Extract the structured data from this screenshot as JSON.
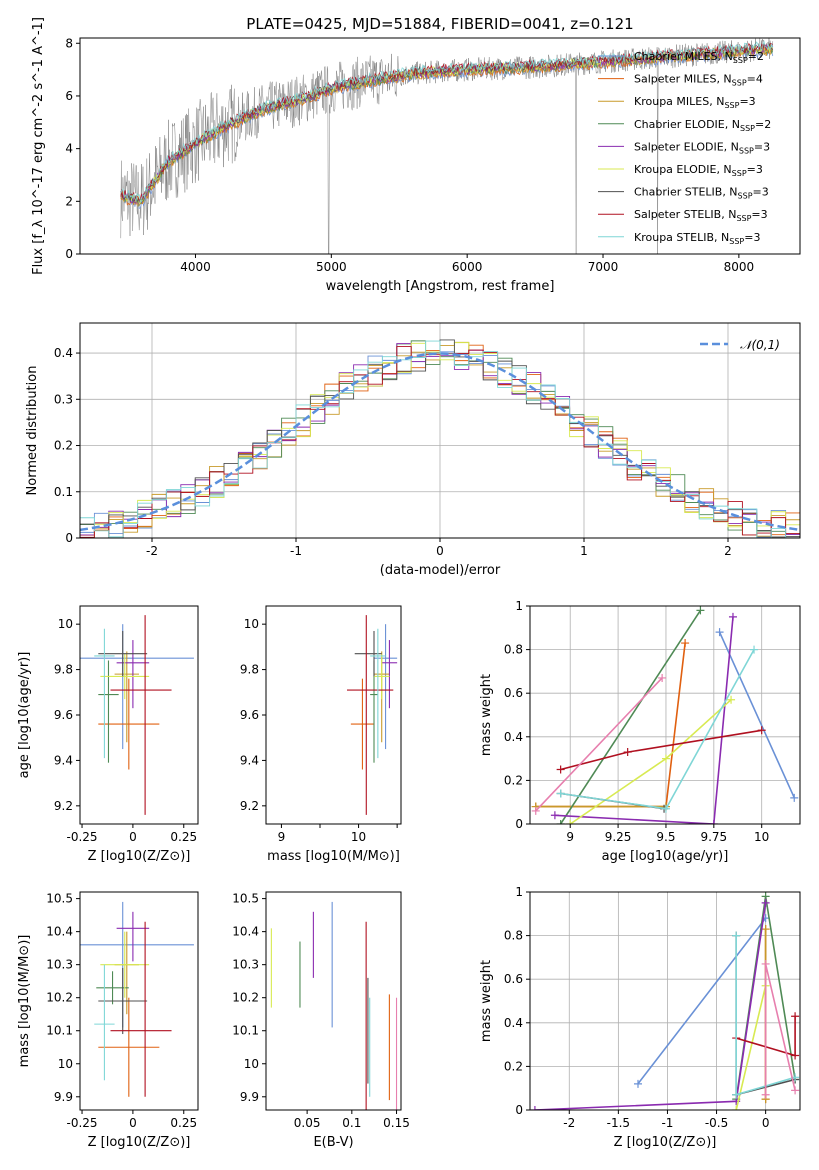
{
  "title": "PLATE=0425, MJD=51884, FIBERID=0041, z=0.121",
  "colors": {
    "Chabrier MILES": "#6a91d6",
    "Salpeter MILES": "#e06010",
    "Kroupa MILES": "#c89a2a",
    "Chabrier ELODIE": "#4f8a55",
    "Salpeter ELODIE": "#8a2bb0",
    "Kroupa ELODIE": "#d8ea52",
    "Chabrier STELIB": "#505050",
    "Salpeter STELIB": "#b01020",
    "Kroupa STELIB": "#7fd6d6",
    "data": "#808080",
    "normal": "#5a8fdc"
  },
  "chart_data": [
    {
      "type": "line",
      "id": "spectrum",
      "xlabel": "wavelength [Angstrom, rest frame]",
      "ylabel": "Flux [f_λ 10^-17 erg cm^-2 s^-1 A^-1]",
      "xlim": [
        3150,
        8450
      ],
      "ylim": [
        0,
        8.2
      ],
      "xticks": [
        4000,
        5000,
        6000,
        7000,
        8000
      ],
      "yticks": [
        0,
        2,
        4,
        6,
        8
      ],
      "legend": {
        "placement": "top-right",
        "entries": [
          {
            "name": "Chabrier MILES",
            "nssp": "2"
          },
          {
            "name": "Salpeter MILES",
            "nssp": "4"
          },
          {
            "name": "Kroupa MILES",
            "nssp": "3"
          },
          {
            "name": "Chabrier ELODIE",
            "nssp": "2"
          },
          {
            "name": "Salpeter ELODIE",
            "nssp": "3"
          },
          {
            "name": "Kroupa ELODIE",
            "nssp": "3"
          },
          {
            "name": "Chabrier STELIB",
            "nssp": "3"
          },
          {
            "name": "Salpeter STELIB",
            "nssp": "3"
          },
          {
            "name": "Kroupa STELIB",
            "nssp": "3"
          }
        ]
      },
      "continuum": {
        "wavelength": [
          3450,
          3600,
          3800,
          4000,
          4200,
          4500,
          4800,
          5000,
          5300,
          5600,
          6000,
          6500,
          7000,
          7500,
          8000,
          8250
        ],
        "flux": [
          2.2,
          2.0,
          3.5,
          4.2,
          4.8,
          5.5,
          5.9,
          6.3,
          6.6,
          6.85,
          7.0,
          7.1,
          7.3,
          7.5,
          7.7,
          7.8
        ]
      }
    },
    {
      "type": "histogram",
      "id": "residuals",
      "xlabel": "(data-model)/error",
      "ylabel": "Normed distribution",
      "xlim": [
        -2.5,
        2.5
      ],
      "ylim": [
        0,
        0.465
      ],
      "xticks": [
        -2,
        -1,
        0,
        1,
        2
      ],
      "yticks": [
        0.0,
        0.1,
        0.2,
        0.3,
        0.4
      ],
      "grid": true,
      "legend": {
        "placement": "top-right",
        "label": "𝒩(0,1)"
      }
    },
    {
      "type": "scatter",
      "id": "age-vs-Z",
      "xlabel": "Z [log10(Z/Z⊙)]",
      "ylabel": "age [log10(age/yr)]",
      "xlim": [
        -0.26,
        0.32
      ],
      "ylim": [
        9.12,
        10.08
      ],
      "xticks": [
        -0.25,
        0.0,
        0.25
      ],
      "yticks": [
        9.2,
        9.4,
        9.6,
        9.8,
        10.0
      ],
      "points": [
        {
          "model": "Chabrier MILES",
          "x": -0.05,
          "xerr": [
            0.35,
            0.35
          ],
          "y": 9.85,
          "yerr": [
            0.4,
            0.15
          ]
        },
        {
          "model": "Salpeter MILES",
          "x": -0.02,
          "xerr": [
            0.15,
            0.15
          ],
          "y": 9.56,
          "yerr": [
            0.2,
            0.2
          ]
        },
        {
          "model": "Kroupa MILES",
          "x": -0.03,
          "xerr": [
            0.06,
            0.06
          ],
          "y": 9.78,
          "yerr": [
            0.3,
            0.1
          ]
        },
        {
          "model": "Chabrier ELODIE",
          "x": -0.12,
          "xerr": [
            0.05,
            0.05
          ],
          "y": 9.69,
          "yerr": [
            0.3,
            0.15
          ]
        },
        {
          "model": "Salpeter ELODIE",
          "x": 0.0,
          "xerr": [
            0.08,
            0.08
          ],
          "y": 9.83,
          "yerr": [
            0.2,
            0.1
          ]
        },
        {
          "model": "Kroupa ELODIE",
          "x": -0.04,
          "xerr": [
            0.12,
            0.12
          ],
          "y": 9.77,
          "yerr": [
            0.1,
            0.1
          ]
        },
        {
          "model": "Chabrier STELIB",
          "x": -0.05,
          "xerr": [
            0.12,
            0.12
          ],
          "y": 9.87,
          "yerr": [
            0.1,
            0.1
          ]
        },
        {
          "model": "Salpeter STELIB",
          "x": 0.06,
          "xerr": [
            0.17,
            0.13
          ],
          "y": 9.71,
          "yerr": [
            0.55,
            0.33
          ]
        },
        {
          "model": "Kroupa STELIB",
          "x": -0.14,
          "xerr": [
            0.05,
            0.05
          ],
          "y": 9.86,
          "yerr": [
            0.45,
            0.12
          ]
        }
      ]
    },
    {
      "type": "scatter",
      "id": "age-vs-mass",
      "xlabel": "mass [log10(M/M⊙)]",
      "ylabel": "",
      "xlim": [
        8.8,
        10.55
      ],
      "ylim": [
        9.12,
        10.08
      ],
      "xticks": [
        9.0,
        9.5,
        10.0,
        10.5
      ],
      "xtick_labels": [
        "9",
        "",
        "10",
        ""
      ],
      "yticks": [
        9.2,
        9.4,
        9.6,
        9.8,
        10.0
      ],
      "points": [
        {
          "model": "Chabrier MILES",
          "x": 10.35,
          "xerr": [
            0.15,
            0.15
          ],
          "y": 9.85,
          "yerr": [
            0.4,
            0.15
          ]
        },
        {
          "model": "Salpeter MILES",
          "x": 10.05,
          "xerr": [
            0.15,
            0.15
          ],
          "y": 9.56,
          "yerr": [
            0.2,
            0.2
          ]
        },
        {
          "model": "Kroupa MILES",
          "x": 10.3,
          "xerr": [
            0.1,
            0.1
          ],
          "y": 9.78,
          "yerr": [
            0.3,
            0.1
          ]
        },
        {
          "model": "Chabrier ELODIE",
          "x": 10.2,
          "xerr": [
            0.05,
            0.05
          ],
          "y": 9.69,
          "yerr": [
            0.3,
            0.15
          ]
        },
        {
          "model": "Salpeter ELODIE",
          "x": 10.4,
          "xerr": [
            0.1,
            0.1
          ],
          "y": 9.83,
          "yerr": [
            0.2,
            0.1
          ]
        },
        {
          "model": "Kroupa ELODIE",
          "x": 10.3,
          "xerr": [
            0.1,
            0.1
          ],
          "y": 9.77,
          "yerr": [
            0.1,
            0.1
          ]
        },
        {
          "model": "Chabrier STELIB",
          "x": 10.2,
          "xerr": [
            0.25,
            0.1
          ],
          "y": 9.87,
          "yerr": [
            0.1,
            0.1
          ]
        },
        {
          "model": "Salpeter STELIB",
          "x": 10.1,
          "xerr": [
            0.25,
            0.35
          ],
          "y": 9.71,
          "yerr": [
            0.55,
            0.33
          ]
        },
        {
          "model": "Kroupa STELIB",
          "x": 10.25,
          "xerr": [
            0.1,
            0.1
          ],
          "y": 9.86,
          "yerr": [
            0.45,
            0.12
          ]
        }
      ]
    },
    {
      "type": "line",
      "id": "mass-weight-vs-age",
      "xlabel": "age [log10(age/yr)]",
      "ylabel": "mass weight",
      "xlim": [
        8.79,
        10.2
      ],
      "ylim": [
        0,
        1.0
      ],
      "xticks": [
        9.0,
        9.25,
        9.5,
        9.75,
        10.0
      ],
      "yticks": [
        0.0,
        0.2,
        0.4,
        0.6,
        0.8,
        1.0
      ],
      "grid": true,
      "series": [
        {
          "model": "Chabrier MILES",
          "x": [
            10.17,
            9.78
          ],
          "y": [
            0.12,
            0.88
          ]
        },
        {
          "model": "Salpeter MILES",
          "x": [
            8.82,
            9.5,
            9.6
          ],
          "y": [
            0.08,
            0.08,
            0.83
          ]
        },
        {
          "model": "Kroupa MILES",
          "x": [
            8.82,
            9.5
          ],
          "y": [
            0.08,
            0.08
          ]
        },
        {
          "model": "Chabrier ELODIE",
          "x": [
            8.95,
            9.68
          ],
          "y": [
            0.0,
            0.98
          ]
        },
        {
          "model": "Salpeter ELODIE",
          "x": [
            8.92,
            9.75,
            9.85
          ],
          "y": [
            0.04,
            0.0,
            0.95
          ]
        },
        {
          "model": "Kroupa ELODIE",
          "x": [
            9.0,
            9.5,
            9.84
          ],
          "y": [
            0.0,
            0.3,
            0.57
          ]
        },
        {
          "model": "Chabrier STELIB",
          "x": [
            8.95,
            9.49
          ],
          "y": [
            0.14,
            0.07
          ]
        },
        {
          "model": "Salpeter STELIB",
          "x": [
            8.95,
            9.3,
            10.0
          ],
          "y": [
            0.25,
            0.33,
            0.43
          ]
        },
        {
          "model": "Kroupa STELIB",
          "x": [
            8.95,
            9.5,
            9.96
          ],
          "y": [
            0.14,
            0.07,
            0.8
          ]
        },
        {
          "model": "Chabrier MILES pink",
          "x": [
            8.82,
            9.48
          ],
          "y": [
            0.06,
            0.67
          ]
        }
      ]
    },
    {
      "type": "scatter",
      "id": "mass-vs-Z",
      "xlabel": "Z [log10(Z/Z⊙)]",
      "ylabel": "mass [log10(M/M⊙)]",
      "xlim": [
        -0.26,
        0.32
      ],
      "ylim": [
        9.86,
        10.52
      ],
      "xticks": [
        -0.25,
        0.0,
        0.25
      ],
      "yticks": [
        9.9,
        10.0,
        10.1,
        10.2,
        10.3,
        10.4,
        10.5
      ],
      "points": [
        {
          "model": "Chabrier MILES",
          "x": -0.05,
          "xerr": [
            0.35,
            0.35
          ],
          "y": 10.36,
          "yerr": [
            0.25,
            0.13
          ]
        },
        {
          "model": "Salpeter MILES",
          "x": -0.02,
          "xerr": [
            0.15,
            0.15
          ],
          "y": 10.05,
          "yerr": [
            0.15,
            0.15
          ]
        },
        {
          "model": "Kroupa MILES",
          "x": -0.03,
          "xerr": [
            0.06,
            0.06
          ],
          "y": 10.3,
          "yerr": [
            0.15,
            0.1
          ]
        },
        {
          "model": "Chabrier ELODIE",
          "x": -0.1,
          "xerr": [
            0.08,
            0.08
          ],
          "y": 10.23,
          "yerr": [
            0.05,
            0.05
          ]
        },
        {
          "model": "Salpeter ELODIE",
          "x": 0.0,
          "xerr": [
            0.08,
            0.08
          ],
          "y": 10.41,
          "yerr": [
            0.1,
            0.05
          ]
        },
        {
          "model": "Kroupa ELODIE",
          "x": -0.04,
          "xerr": [
            0.12,
            0.12
          ],
          "y": 10.3,
          "yerr": [
            0.1,
            0.1
          ]
        },
        {
          "model": "Chabrier STELIB",
          "x": -0.05,
          "xerr": [
            0.12,
            0.12
          ],
          "y": 10.19,
          "yerr": [
            0.1,
            0.1
          ]
        },
        {
          "model": "Salpeter STELIB",
          "x": 0.06,
          "xerr": [
            0.17,
            0.13
          ],
          "y": 10.1,
          "yerr": [
            0.2,
            0.33
          ]
        },
        {
          "model": "Kroupa STELIB",
          "x": -0.14,
          "xerr": [
            0.05,
            0.05
          ],
          "y": 10.12,
          "yerr": [
            0.17,
            0.18
          ]
        }
      ]
    },
    {
      "type": "scatter",
      "id": "mass-vs-EBV",
      "xlabel": "E(B-V)",
      "ylabel": "",
      "xlim": [
        0.004,
        0.155
      ],
      "ylim": [
        9.86,
        10.52
      ],
      "xticks": [
        0.05,
        0.1,
        0.15
      ],
      "yticks": [
        9.9,
        10.0,
        10.1,
        10.2,
        10.3,
        10.4,
        10.5
      ],
      "points": [
        {
          "model": "Kroupa ELODIE",
          "x": 0.01,
          "y": 10.29,
          "yerr": [
            0.12,
            0.12
          ]
        },
        {
          "model": "Chabrier ELODIE",
          "x": 0.042,
          "y": 10.27,
          "yerr": [
            0.1,
            0.1
          ]
        },
        {
          "model": "Salpeter ELODIE",
          "x": 0.057,
          "y": 10.36,
          "yerr": [
            0.1,
            0.1
          ]
        },
        {
          "model": "Chabrier MILES",
          "x": 0.078,
          "y": 10.3,
          "yerr": [
            0.19,
            0.19
          ]
        },
        {
          "model": "Salpeter STELIB",
          "x": 0.116,
          "y": 10.1,
          "yerr": [
            0.24,
            0.33
          ]
        },
        {
          "model": "Chabrier STELIB",
          "x": 0.118,
          "y": 10.06,
          "yerr": [
            0.12,
            0.2
          ]
        },
        {
          "model": "Kroupa STELIB",
          "x": 0.12,
          "y": 10.05,
          "yerr": [
            0.15,
            0.15
          ]
        },
        {
          "model": "Salpeter MILES",
          "x": 0.142,
          "y": 10.05,
          "yerr": [
            0.16,
            0.16
          ]
        },
        {
          "model": "Chabrier MILES pink",
          "x": 0.15,
          "y": 10.0,
          "yerr": [
            0.2,
            0.2
          ]
        }
      ]
    },
    {
      "type": "line",
      "id": "mass-weight-vs-Z",
      "xlabel": "Z [log10(Z/Z⊙)]",
      "ylabel": "mass weight",
      "xlim": [
        -2.4,
        0.35
      ],
      "ylim": [
        0,
        1.0
      ],
      "xticks": [
        -2.0,
        -1.5,
        -1.0,
        -0.5,
        0.0
      ],
      "yticks": [
        0.0,
        0.2,
        0.4,
        0.6,
        0.8,
        1.0
      ],
      "grid": true,
      "series": [
        {
          "model": "Chabrier MILES",
          "x": [
            -1.3,
            0.0
          ],
          "y": [
            0.12,
            0.88
          ]
        },
        {
          "model": "Salpeter MILES",
          "x": [
            0.0,
            0.0
          ],
          "y": [
            0.05,
            0.83
          ]
        },
        {
          "model": "Kroupa MILES",
          "x": [
            0.0,
            0.0
          ],
          "y": [
            0.05,
            0.83
          ]
        },
        {
          "model": "Chabrier ELODIE",
          "x": [
            -0.3,
            0.0,
            0.3
          ],
          "y": [
            0.05,
            0.98,
            0.14
          ]
        },
        {
          "model": "Salpeter ELODIE",
          "x": [
            -2.35,
            -0.3,
            0.0
          ],
          "y": [
            0.0,
            0.04,
            0.95
          ]
        },
        {
          "model": "Kroupa ELODIE",
          "x": [
            -0.3,
            0.0
          ],
          "y": [
            0.0,
            0.57
          ]
        },
        {
          "model": "Chabrier STELIB",
          "x": [
            -0.3,
            -0.3,
            0.3
          ],
          "y": [
            0.8,
            0.07,
            0.14
          ]
        },
        {
          "model": "Salpeter STELIB",
          "x": [
            -0.3,
            0.3,
            0.3
          ],
          "y": [
            0.33,
            0.25,
            0.43
          ]
        },
        {
          "model": "Kroupa STELIB",
          "x": [
            -0.3,
            -0.3,
            0.3
          ],
          "y": [
            0.8,
            0.07,
            0.15
          ]
        },
        {
          "model": "Chabrier MILES pink",
          "x": [
            0.0,
            0.0,
            0.3
          ],
          "y": [
            0.07,
            0.67,
            0.09
          ]
        }
      ]
    }
  ]
}
